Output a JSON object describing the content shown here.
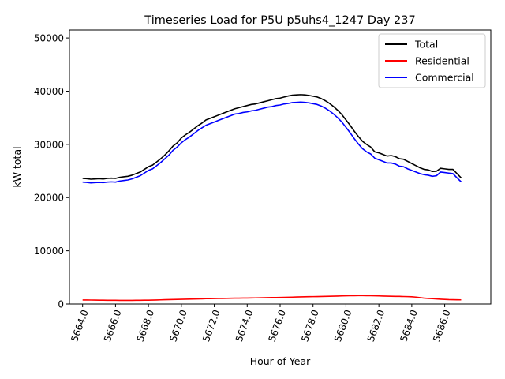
{
  "chart_data": {
    "type": "line",
    "title": "Timeseries Load for P5U p5uhs4_1247  Day 237",
    "xlabel": "Hour of Year",
    "ylabel": "kW total",
    "xlim": [
      5663.2,
      5688.8
    ],
    "ylim": [
      0,
      51500
    ],
    "x_ticks": [
      5664,
      5666,
      5668,
      5670,
      5672,
      5674,
      5676,
      5678,
      5680,
      5682,
      5684,
      5686
    ],
    "x_tick_labels": [
      "5664.0",
      "5666.0",
      "5668.0",
      "5670.0",
      "5672.0",
      "5674.0",
      "5676.0",
      "5678.0",
      "5680.0",
      "5682.0",
      "5684.0",
      "5686.0"
    ],
    "y_ticks": [
      0,
      10000,
      20000,
      30000,
      40000,
      50000
    ],
    "y_tick_labels": [
      "0",
      "10000",
      "20000",
      "30000",
      "40000",
      "50000"
    ],
    "grid": false,
    "legend_position": "top-right",
    "x_start": 5664.0,
    "x_step": 0.25,
    "series": [
      {
        "name": "Total",
        "color": "#000000",
        "values": [
          23600,
          23550,
          23450,
          23500,
          23550,
          23500,
          23600,
          23650,
          23600,
          23800,
          23900,
          24000,
          24200,
          24500,
          24800,
          25300,
          25800,
          26100,
          26700,
          27300,
          28000,
          28800,
          29700,
          30300,
          31200,
          31800,
          32300,
          32900,
          33500,
          34000,
          34600,
          34900,
          35200,
          35500,
          35800,
          36100,
          36400,
          36700,
          36900,
          37100,
          37300,
          37500,
          37600,
          37800,
          38000,
          38200,
          38400,
          38600,
          38700,
          38900,
          39100,
          39250,
          39300,
          39350,
          39300,
          39200,
          39050,
          38900,
          38600,
          38200,
          37700,
          37100,
          36400,
          35600,
          34600,
          33600,
          32500,
          31500,
          30600,
          30000,
          29500,
          28600,
          28400,
          28100,
          27800,
          27900,
          27700,
          27300,
          27200,
          26800,
          26400,
          26000,
          25600,
          25300,
          25200,
          24900,
          24950,
          25500,
          25400,
          25300,
          25300,
          24500,
          23700
        ]
      },
      {
        "name": "Residential",
        "color": "#ff0000",
        "values": [
          750,
          750,
          740,
          730,
          720,
          710,
          700,
          700,
          690,
          680,
          680,
          680,
          680,
          690,
          700,
          710,
          720,
          730,
          750,
          780,
          800,
          820,
          840,
          860,
          880,
          900,
          920,
          940,
          960,
          980,
          1000,
          1010,
          1020,
          1040,
          1050,
          1060,
          1080,
          1100,
          1110,
          1120,
          1130,
          1140,
          1150,
          1160,
          1180,
          1200,
          1210,
          1220,
          1240,
          1260,
          1280,
          1300,
          1320,
          1340,
          1360,
          1380,
          1390,
          1400,
          1420,
          1440,
          1460,
          1480,
          1500,
          1520,
          1540,
          1560,
          1570,
          1580,
          1580,
          1570,
          1560,
          1540,
          1520,
          1490,
          1470,
          1450,
          1440,
          1430,
          1410,
          1390,
          1360,
          1300,
          1200,
          1100,
          1050,
          1000,
          950,
          900,
          860,
          820,
          800,
          790,
          780
        ]
      },
      {
        "name": "Commercial",
        "color": "#0000ff",
        "values": [
          22900,
          22850,
          22750,
          22800,
          22850,
          22800,
          22900,
          22950,
          22900,
          23100,
          23200,
          23300,
          23500,
          23800,
          24100,
          24600,
          25100,
          25400,
          26000,
          26600,
          27300,
          28000,
          28900,
          29500,
          30300,
          30900,
          31400,
          32000,
          32600,
          33100,
          33600,
          33900,
          34200,
          34500,
          34800,
          35100,
          35400,
          35700,
          35800,
          36000,
          36100,
          36300,
          36400,
          36600,
          36800,
          37000,
          37100,
          37300,
          37400,
          37600,
          37700,
          37850,
          37900,
          37950,
          37900,
          37800,
          37650,
          37500,
          37200,
          36800,
          36300,
          35700,
          35000,
          34200,
          33200,
          32200,
          31100,
          30100,
          29200,
          28600,
          28200,
          27400,
          27100,
          26800,
          26500,
          26500,
          26300,
          25900,
          25800,
          25400,
          25100,
          24800,
          24500,
          24300,
          24200,
          24000,
          24100,
          24800,
          24700,
          24600,
          24500,
          23700,
          22950
        ]
      }
    ]
  }
}
